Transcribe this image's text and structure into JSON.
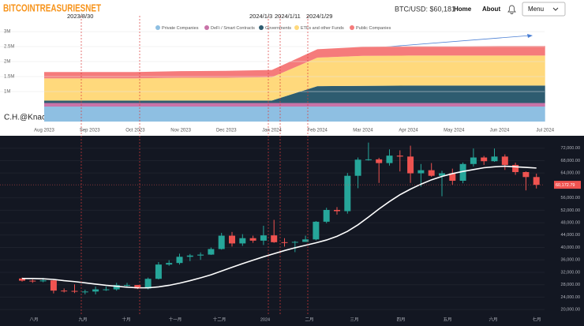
{
  "header": {
    "logo": "BITCOINTREASURIESNET",
    "price": "BTC/USD: $60,181",
    "nav": [
      "Home",
      "About"
    ],
    "menu": "Menu"
  },
  "annotations": {
    "dates": [
      "2023/8/30",
      "2024/1/3",
      "2024/1/11",
      "2024/1/29"
    ],
    "credit": "C.H.@Knack of Matters"
  },
  "chart_data": [
    {
      "type": "area",
      "stacked": true,
      "categories": [
        "Aug 2023",
        "Sep 2023",
        "Oct 2023",
        "Nov 2023",
        "Dec 2023",
        "Jan 2024",
        "Feb 2024",
        "Mar 2024",
        "Apr 2024",
        "May 2024",
        "Jun 2024",
        "Jul 2024"
      ],
      "series": [
        {
          "name": "Private Companies",
          "color": "#8ebfe2",
          "values": [
            500000,
            500000,
            500000,
            500000,
            500000,
            500000,
            500000,
            500000,
            500000,
            500000,
            500000,
            500000
          ]
        },
        {
          "name": "DeFi / Smart Contracts",
          "color": "#c873a8",
          "values": [
            120000,
            120000,
            120000,
            120000,
            120000,
            120000,
            120000,
            120000,
            120000,
            120000,
            120000,
            120000
          ]
        },
        {
          "name": "Governments",
          "color": "#2e5c70",
          "values": [
            80000,
            80000,
            80000,
            80000,
            80000,
            80000,
            560000,
            570000,
            580000,
            580000,
            580000,
            580000
          ]
        },
        {
          "name": "ETFs and other Funds",
          "color": "#ffd97c",
          "values": [
            740000,
            740000,
            740000,
            760000,
            760000,
            780000,
            950000,
            1000000,
            1000000,
            1000000,
            1000000,
            1000000
          ]
        },
        {
          "name": "Public Companies",
          "color": "#f57b7b",
          "values": [
            210000,
            210000,
            210000,
            220000,
            230000,
            240000,
            280000,
            300000,
            310000,
            310000,
            320000,
            320000
          ]
        }
      ],
      "ylim": [
        0,
        3000000
      ],
      "yticks": [
        {
          "value": 3000000,
          "label": "3M"
        },
        {
          "value": 2500000,
          "label": "2.5M"
        },
        {
          "value": 2000000,
          "label": "2M"
        },
        {
          "value": 1500000,
          "label": "1.5M"
        },
        {
          "value": 1000000,
          "label": "1M"
        }
      ],
      "grid": true
    },
    {
      "type": "candlestick",
      "x_labels": [
        "八月",
        "九月",
        "十月",
        "十一月",
        "十二月",
        "2024",
        "二月",
        "三月",
        "四月",
        "五月",
        "六月",
        "七月"
      ],
      "open": [
        30000,
        29300,
        29100,
        29400,
        26100,
        26000,
        25800,
        25800,
        26500,
        26500,
        27900,
        27900,
        26800,
        29900,
        34500,
        35000,
        37000,
        37400,
        37700,
        39500,
        43800,
        41300,
        43000,
        42200,
        43900,
        41700,
        41600,
        41800,
        42600,
        48300,
        52100,
        51700,
        63100,
        68300,
        68400,
        67200,
        69600,
        69300,
        63900,
        64900,
        63100,
        63900,
        61500,
        66900,
        69000,
        67800,
        69300,
        66600,
        64300,
        62700
      ],
      "high": [
        30300,
        29700,
        30200,
        29700,
        26800,
        28100,
        26400,
        27400,
        27400,
        28600,
        28600,
        27900,
        30300,
        35300,
        35900,
        38000,
        37900,
        38400,
        40000,
        44700,
        45000,
        44300,
        43800,
        47000,
        48900,
        43000,
        42100,
        43800,
        48500,
        52800,
        53000,
        64000,
        69000,
        73800,
        68900,
        71600,
        71300,
        72800,
        66900,
        67200,
        64700,
        65400,
        67400,
        71900,
        69500,
        71900,
        70000,
        67300,
        64500,
        63800
      ],
      "low": [
        29000,
        28600,
        28800,
        25200,
        25500,
        25300,
        24900,
        24900,
        26000,
        26100,
        27200,
        26600,
        26500,
        29700,
        34100,
        34500,
        35600,
        36000,
        37600,
        39300,
        40300,
        40500,
        41500,
        40800,
        41500,
        40300,
        38500,
        41800,
        42300,
        47800,
        50600,
        50900,
        59100,
        68000,
        60800,
        66400,
        64500,
        60800,
        59600,
        62800,
        56500,
        60200,
        60700,
        66100,
        66600,
        67600,
        65000,
        63400,
        58400,
        59000
      ],
      "close": [
        29300,
        29100,
        29400,
        26100,
        26000,
        25800,
        25800,
        26500,
        26500,
        27900,
        27900,
        26800,
        29900,
        34500,
        35000,
        37000,
        37400,
        37700,
        39500,
        43800,
        41300,
        43000,
        42200,
        43900,
        41700,
        41600,
        41800,
        42600,
        48300,
        52100,
        51700,
        63100,
        68300,
        68400,
        67200,
        69600,
        69300,
        63900,
        64900,
        63100,
        63900,
        61500,
        66900,
        69000,
        67800,
        69300,
        66600,
        64300,
        62700,
        60200
      ],
      "ma": {
        "color": "#ffffff",
        "values": [
          30000,
          30000,
          29900,
          29700,
          29300,
          29000,
          28600,
          28200,
          27800,
          27500,
          27200,
          27000,
          27000,
          27300,
          27800,
          28500,
          29300,
          30200,
          31200,
          32400,
          33600,
          34800,
          35900,
          37000,
          38000,
          39000,
          39900,
          40700,
          41500,
          42400,
          43600,
          45200,
          47300,
          49800,
          52400,
          54800,
          57000,
          58800,
          60400,
          61800,
          62900,
          63800,
          64500,
          65100,
          65700,
          66000,
          66200,
          66000,
          65800,
          65600
        ]
      },
      "up_color": "#26a69a",
      "down_color": "#ef5350",
      "ylim": [
        18000,
        76000
      ],
      "yticks": [
        {
          "value": 72000,
          "label": "72,000.00"
        },
        {
          "value": 68000,
          "label": "68,000.00"
        },
        {
          "value": 64000,
          "label": "64,000.00"
        },
        {
          "value": 56000,
          "label": "56,000.00"
        },
        {
          "value": 52000,
          "label": "52,000.00"
        },
        {
          "value": 48000,
          "label": "48,000.00"
        },
        {
          "value": 44000,
          "label": "44,000.00"
        },
        {
          "value": 40000,
          "label": "40,000.00"
        },
        {
          "value": 36000,
          "label": "36,000.00"
        },
        {
          "value": 32000,
          "label": "32,000.00"
        },
        {
          "value": 28000,
          "label": "28,000.00"
        },
        {
          "value": 24000,
          "label": "24,000.00"
        },
        {
          "value": 20000,
          "label": "20,000.00"
        }
      ],
      "price_label": "60,172.79",
      "grid": true
    }
  ]
}
